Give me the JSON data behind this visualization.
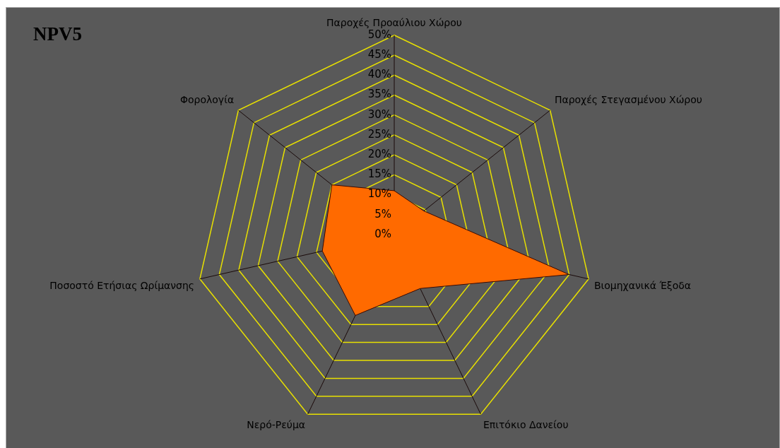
{
  "chart_data": {
    "type": "radar",
    "title": "NPV5",
    "categories": [
      "Παροχές Προαύλιου Χώρου",
      "Παροχές Στεγασμένου Χώρου",
      "Βιομηχανικά Έξοδα",
      "Επιτόκιο Δανείου",
      "Νερό-Ρεύμα",
      "Ποσοστό Ετήσιας Ωρίμανσης",
      "Φορολογία"
    ],
    "series": [
      {
        "color": "#ff6a00",
        "values": [
          11,
          9.5,
          45,
          15,
          22.5,
          18.5,
          20
        ]
      }
    ],
    "ylim": [
      0,
      50
    ],
    "yticks": [
      {
        "value": 0,
        "label": "0%"
      },
      {
        "value": 5,
        "label": "5%"
      },
      {
        "value": 10,
        "label": "10%"
      },
      {
        "value": 15,
        "label": "15%"
      },
      {
        "value": 20,
        "label": "20%"
      },
      {
        "value": 25,
        "label": "25%"
      },
      {
        "value": 30,
        "label": "30%"
      },
      {
        "value": 35,
        "label": "35%"
      },
      {
        "value": 40,
        "label": "40%"
      },
      {
        "value": 45,
        "label": "45%"
      },
      {
        "value": 50,
        "label": "50%"
      }
    ],
    "grid": true,
    "marker": "none",
    "legend": false
  }
}
